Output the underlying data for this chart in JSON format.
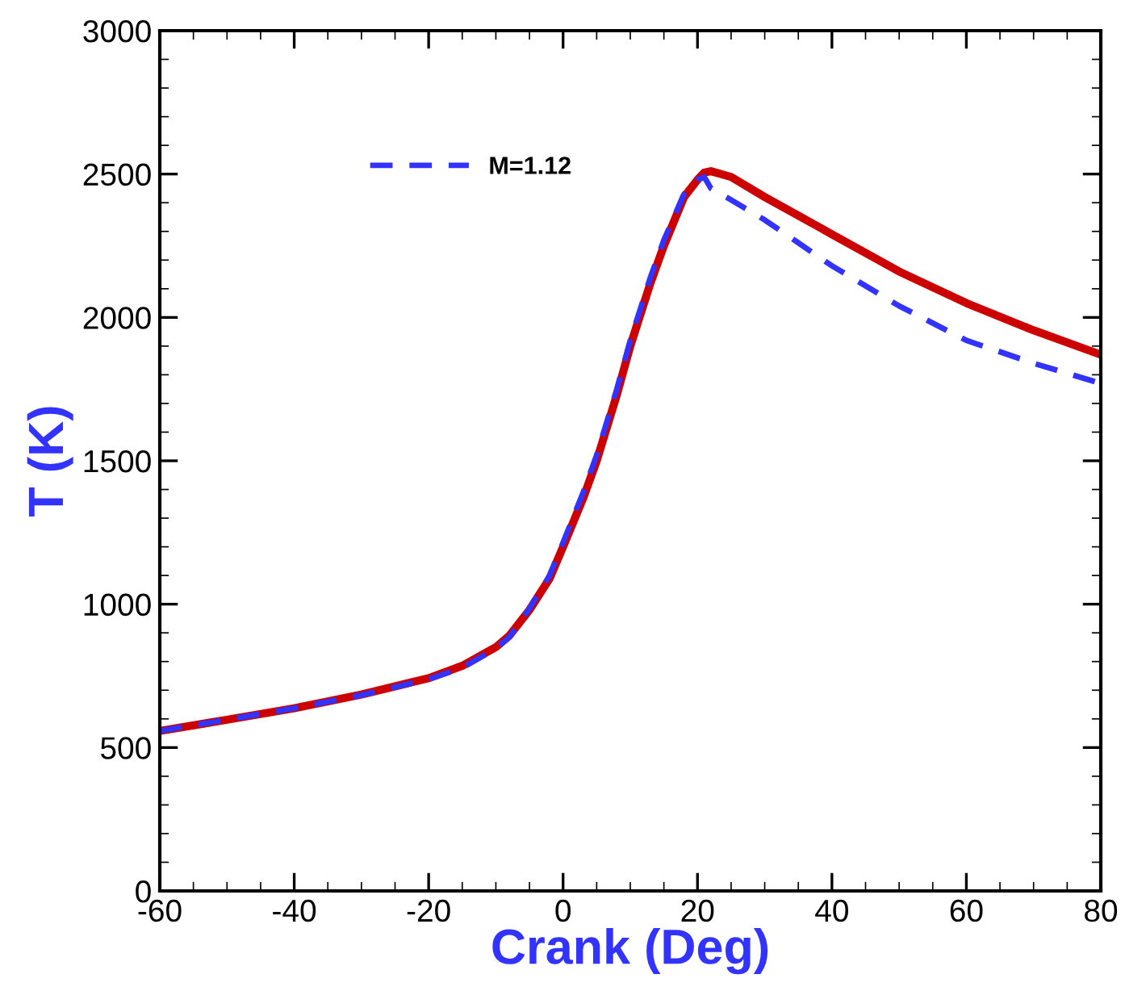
{
  "chart_data": {
    "type": "line",
    "xlabel": "Crank (Deg)",
    "ylabel": "T (K)",
    "xlim": [
      -60,
      80
    ],
    "xticks": [
      -60,
      -40,
      -20,
      0,
      20,
      40,
      60,
      80
    ],
    "ylim": [
      0,
      3000
    ],
    "yticks": [
      0,
      500,
      1000,
      1500,
      2000,
      2500,
      3000
    ],
    "grid": false,
    "legend": "top left",
    "marker": "none",
    "series": [
      {
        "color": "#cc0000",
        "line_style": "solid",
        "x": [
          -60,
          -50,
          -40,
          -30,
          -20,
          -15,
          -10,
          -8,
          -5,
          -2,
          0,
          3,
          5,
          8,
          10,
          13,
          15,
          18,
          20,
          21,
          22,
          25,
          30,
          35,
          40,
          50,
          60,
          70,
          80
        ],
        "values": [
          558,
          597,
          637,
          685,
          742,
          785,
          850,
          890,
          980,
          1090,
          1200,
          1370,
          1500,
          1730,
          1900,
          2120,
          2250,
          2420,
          2480,
          2505,
          2510,
          2490,
          2420,
          2355,
          2290,
          2160,
          2050,
          1955,
          1870
        ]
      },
      {
        "name": "M=1.12",
        "color": "#3333ff",
        "line_style": "dashed",
        "x": [
          -60,
          -50,
          -40,
          -30,
          -20,
          -15,
          -10,
          -8,
          -5,
          -2,
          0,
          3,
          5,
          8,
          10,
          13,
          15,
          18,
          20,
          21,
          22,
          25,
          30,
          35,
          40,
          50,
          60,
          70,
          80
        ],
        "values": [
          558,
          597,
          637,
          683,
          738,
          778,
          845,
          885,
          985,
          1100,
          1215,
          1390,
          1520,
          1750,
          1920,
          2140,
          2270,
          2430,
          2480,
          2490,
          2450,
          2410,
          2340,
          2260,
          2180,
          2040,
          1920,
          1840,
          1770
        ]
      }
    ]
  }
}
